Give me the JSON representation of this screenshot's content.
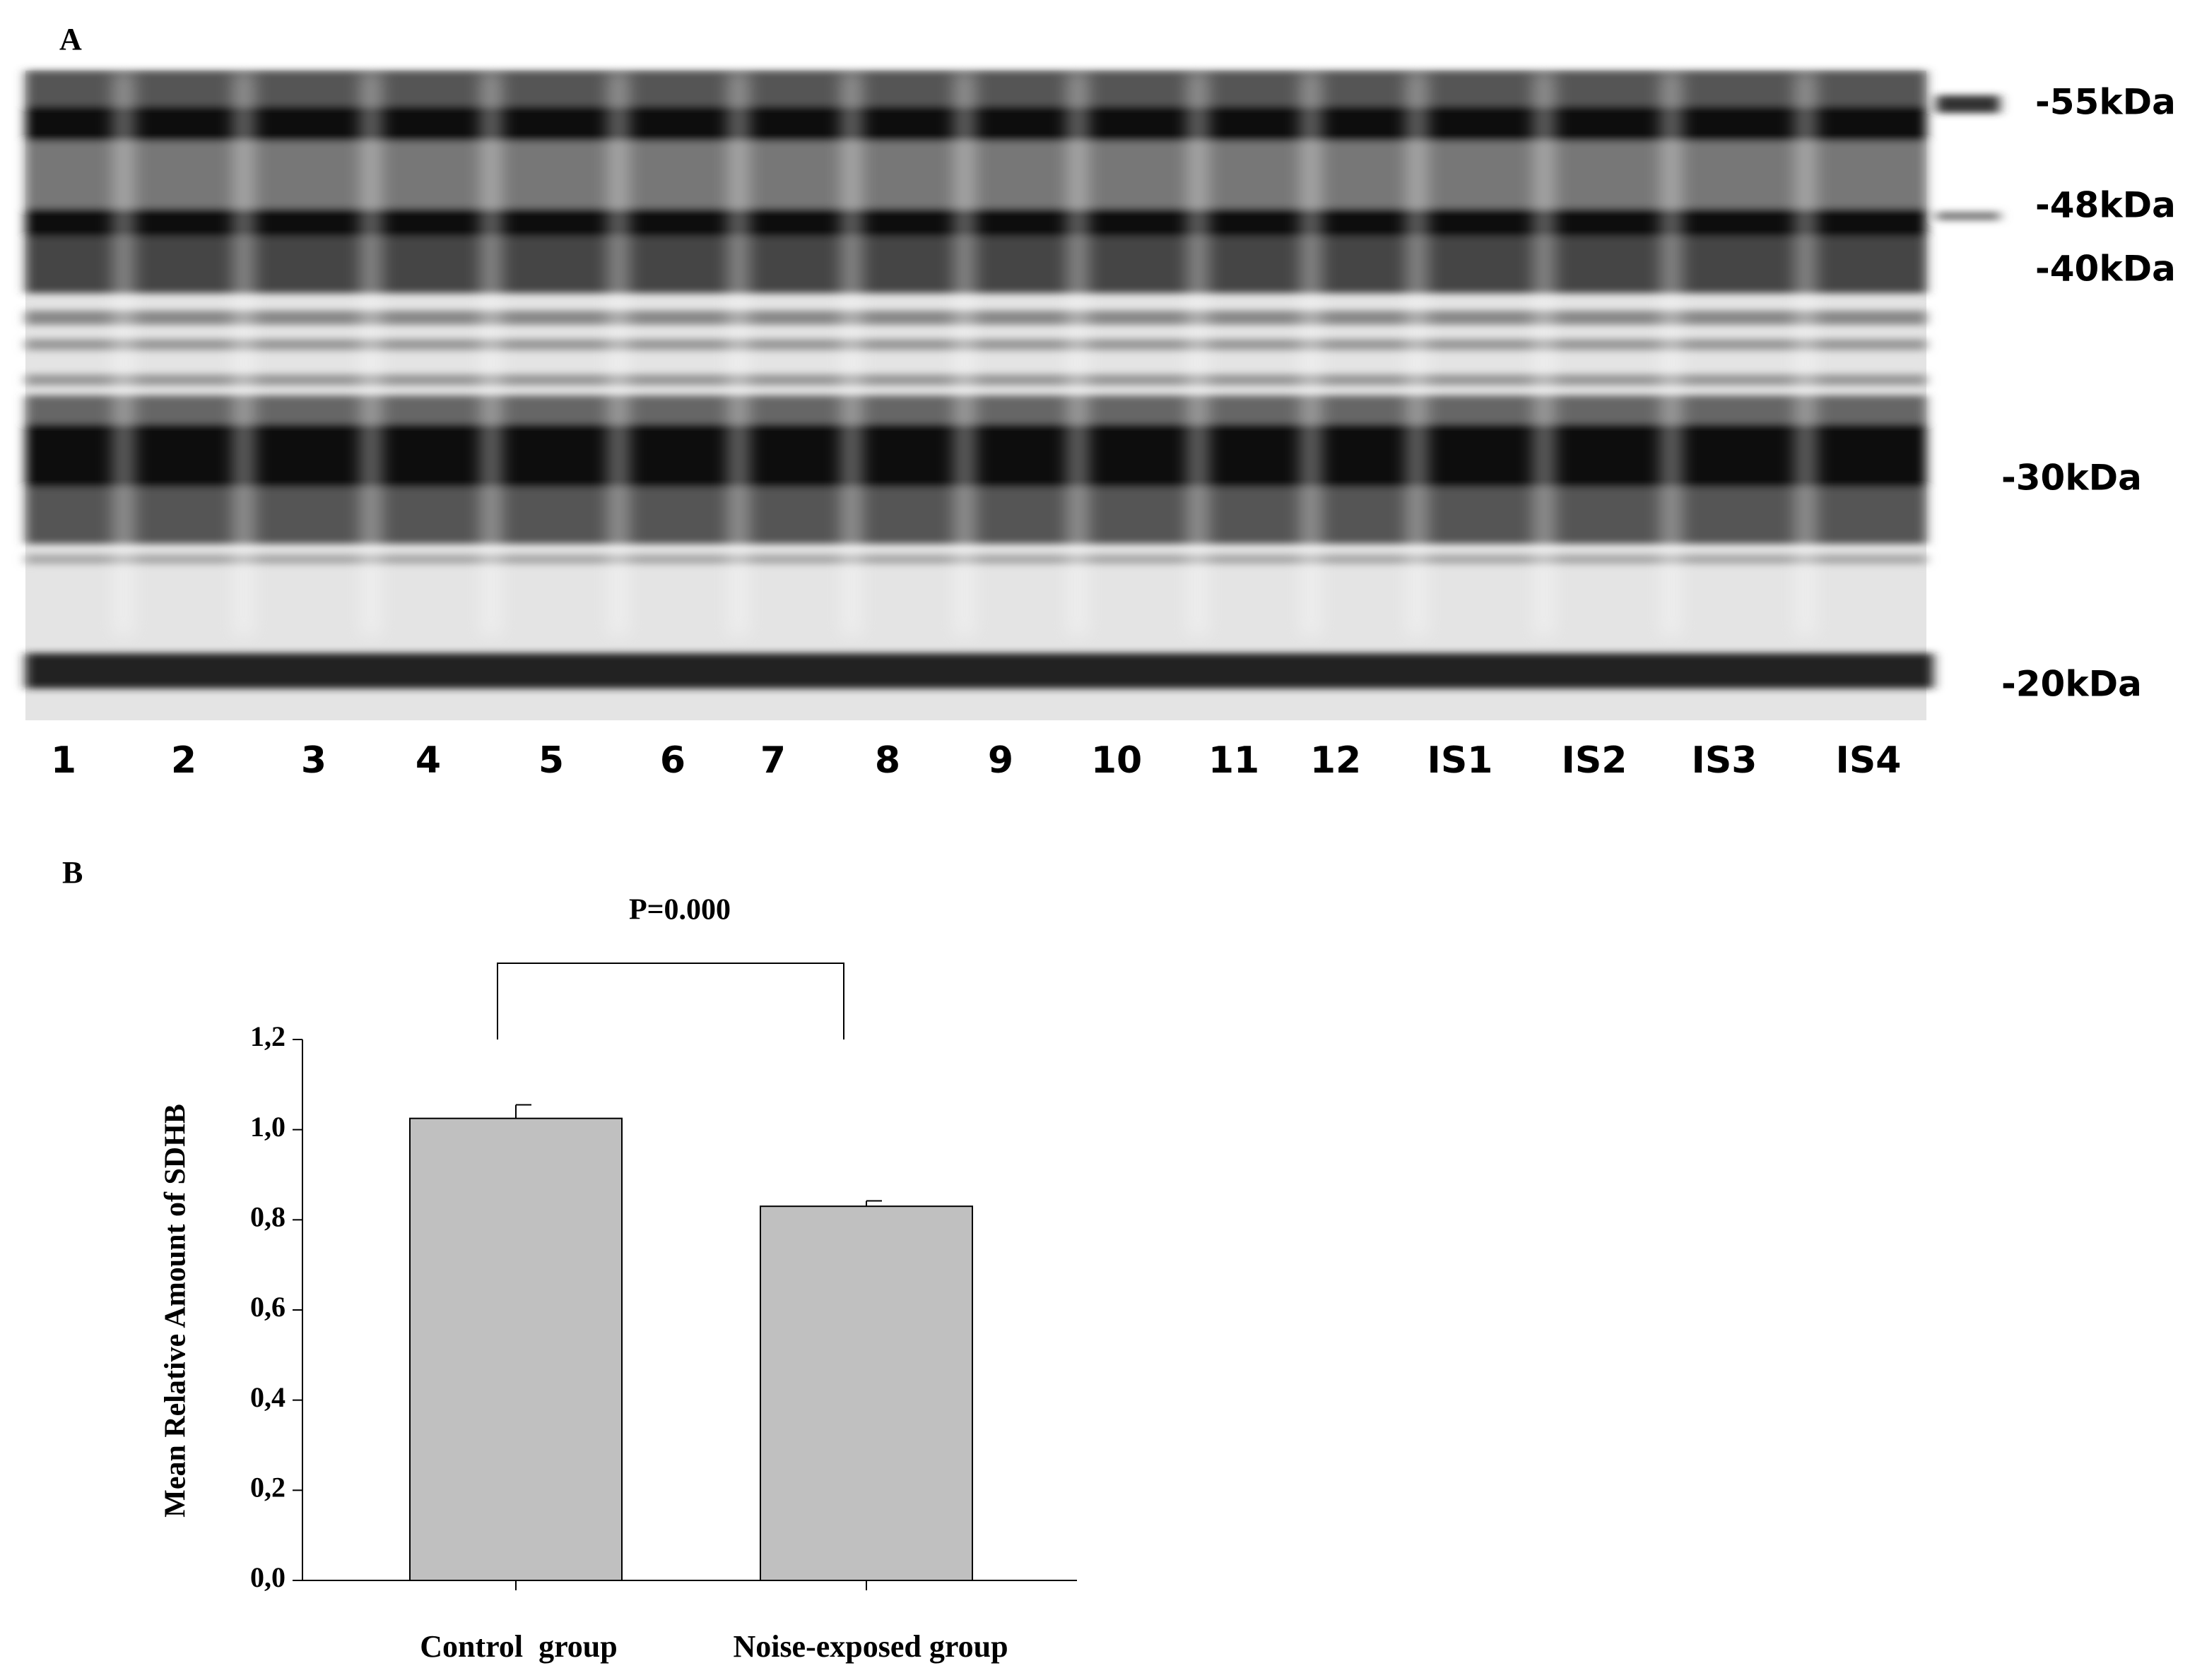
{
  "panel_a": {
    "label": "A",
    "lanes": [
      "1",
      "2",
      "3",
      "4",
      "5",
      "6",
      "7",
      "8",
      "9",
      "10",
      "11",
      "12",
      "IS1",
      "IS2",
      "IS3",
      "IS4"
    ],
    "markers": [
      "-55kDa",
      "-48kDa",
      "-40kDa",
      "-30kDa",
      "-20kDa"
    ]
  },
  "panel_b": {
    "label": "B"
  },
  "chart_data": {
    "type": "bar",
    "annotation": "P=0.000",
    "ylabel": "Mean  Relative Amount of SDHB",
    "categories": [
      "Control  group",
      "Noise-exposed group"
    ],
    "values": [
      1.025,
      0.83
    ],
    "errors": [
      0.03,
      0.012
    ],
    "color": "#c0c0c0",
    "ylim": [
      0,
      1.2
    ],
    "yticks": [
      {
        "value": 0,
        "label": "0,0"
      },
      {
        "value": 0.2,
        "label": "0,2"
      },
      {
        "value": 0.4,
        "label": "0,4"
      },
      {
        "value": 0.6,
        "label": "0,6"
      },
      {
        "value": 0.8,
        "label": "0,8"
      },
      {
        "value": 1.0,
        "label": "1,0"
      },
      {
        "value": 1.2,
        "label": "1,2"
      }
    ]
  }
}
